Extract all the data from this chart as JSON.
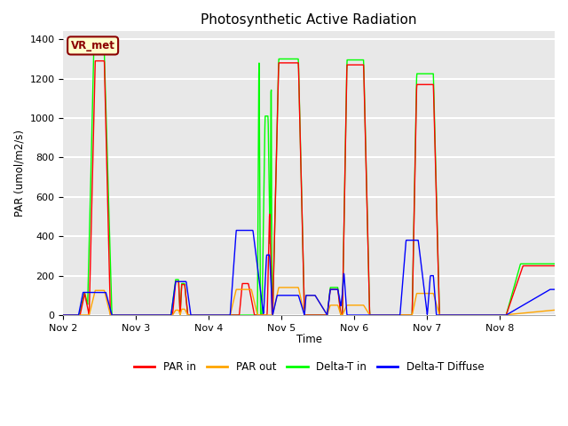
{
  "title": "Photosynthetic Active Radiation",
  "ylabel": "PAR (umol/m2/s)",
  "xlabel": "Time",
  "ylim": [
    0,
    1440
  ],
  "yticks": [
    0,
    200,
    400,
    600,
    800,
    1000,
    1200,
    1400
  ],
  "annotation_text": "VR_met",
  "annotation_color": "#8B0000",
  "annotation_bg": "#FFFFCC",
  "legend_labels": [
    "PAR in",
    "PAR out",
    "Delta-T in",
    "Delta-T Diffuse"
  ],
  "legend_colors": [
    "red",
    "orange",
    "lime",
    "blue"
  ],
  "colors": {
    "par_in": "red",
    "par_out": "orange",
    "delta_t_in": "lime",
    "delta_t_diffuse": "blue"
  },
  "axes_bg": "#e8e8e8",
  "grid_color": "white",
  "xtick_labels": [
    "Nov 2",
    "Nov 3",
    "Nov 4",
    "Nov 5",
    "Nov 6",
    "Nov 7",
    "Nov 8"
  ],
  "xtick_positions": [
    0,
    24,
    48,
    72,
    96,
    120,
    144
  ],
  "xlim": [
    0,
    162
  ]
}
